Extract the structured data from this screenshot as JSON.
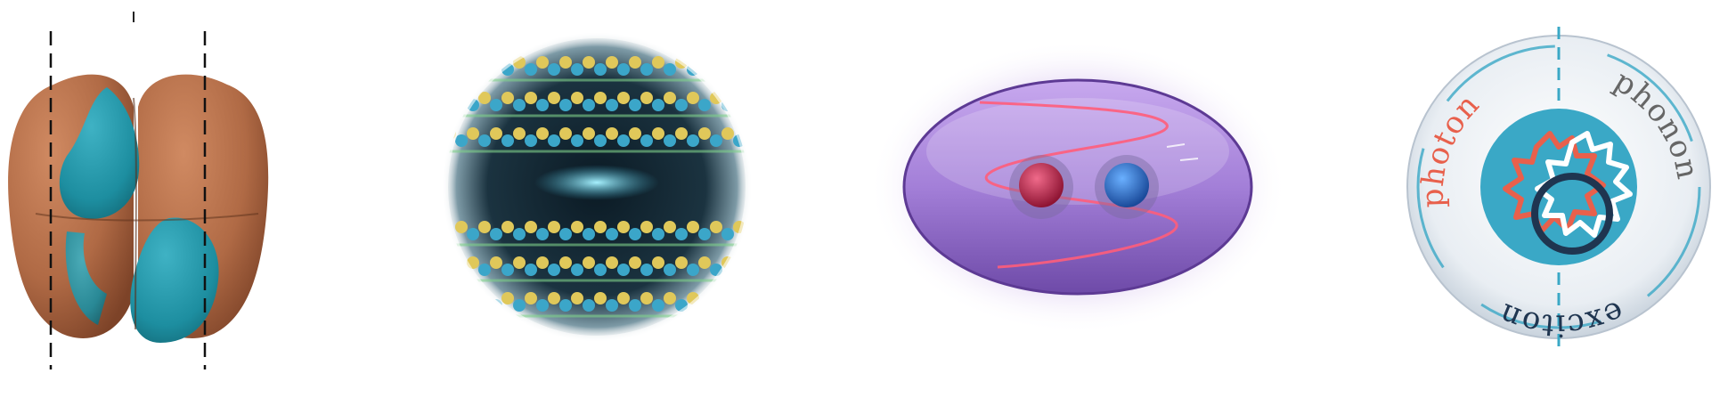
{
  "labels": {
    "photon": "photon",
    "phonon": "phonon",
    "exciton": "exciton"
  },
  "colors": {
    "orbital_lobe": "#b8704a",
    "orbital_core": "#1f93a8",
    "accent_teal": "#3aa8c6",
    "photon_red": "#e8604c",
    "exciton_navy": "#1f3550",
    "phonon_gray": "#666666",
    "ellipsoid_violet": "#9b7fd0",
    "electron_red": "#c2244a",
    "hole_blue": "#2c6fc9"
  },
  "icons": [
    "orbital-render",
    "crystal-lattice-sphere",
    "exciton-ellipsoid",
    "polariton-badge"
  ]
}
